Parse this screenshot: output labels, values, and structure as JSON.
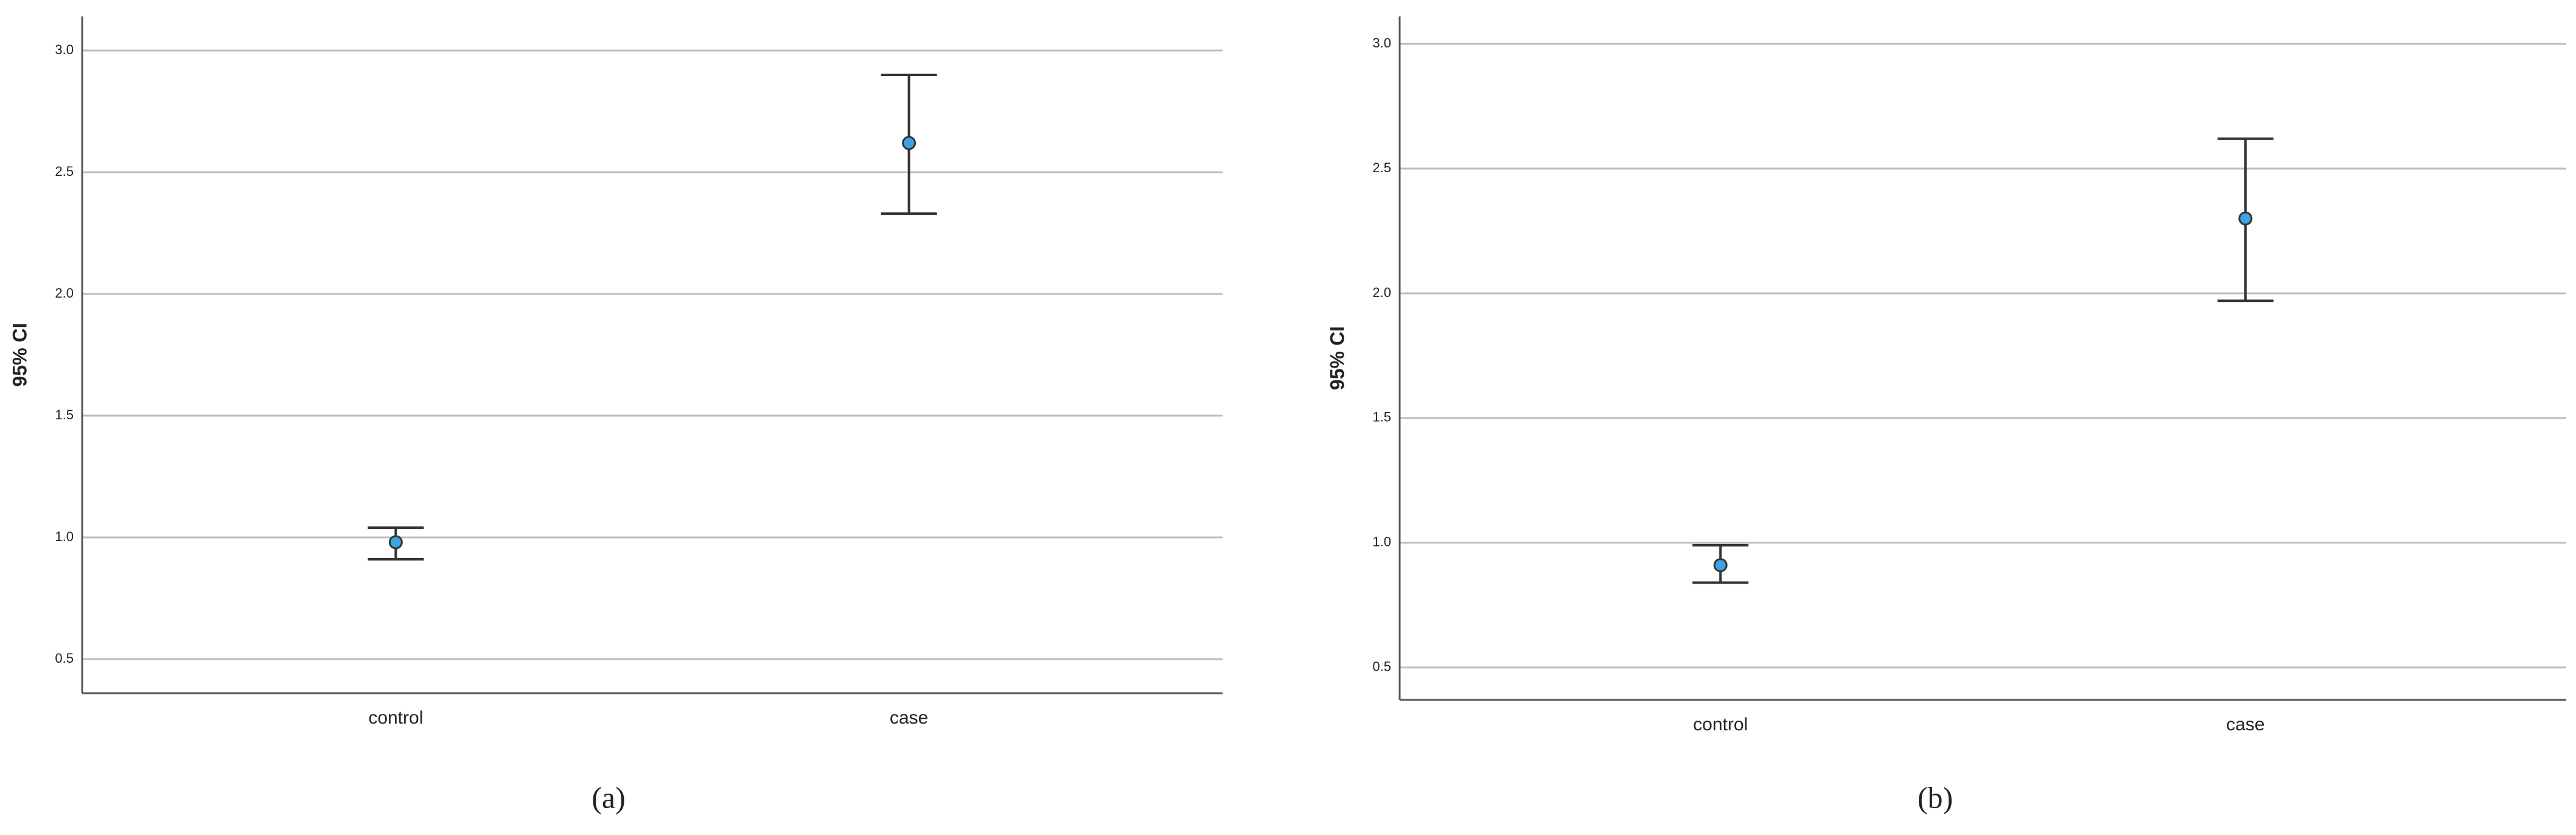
{
  "chart_data": [
    {
      "type": "errorbar",
      "caption": "(a)",
      "y_label": "95% CI",
      "categories": [
        "control",
        "case"
      ],
      "values": [
        0.98,
        2.62
      ],
      "ci_low": [
        0.91,
        2.33
      ],
      "ci_high": [
        1.04,
        2.9
      ],
      "color": "#3ba3e6",
      "ylim": [
        0.36,
        3.14
      ],
      "yticks": [
        0.5,
        {
          "value": 1,
          "label": "1.0"
        },
        1.5,
        {
          "value": 2,
          "label": "2.0"
        },
        2.5,
        {
          "value": 3,
          "label": "3.0"
        }
      ],
      "grid": true
    },
    {
      "type": "errorbar",
      "caption": "(b)",
      "y_label": "95% CI",
      "categories": [
        "control",
        "case"
      ],
      "values": [
        0.91,
        2.3
      ],
      "ci_low": [
        0.84,
        1.97
      ],
      "ci_high": [
        0.99,
        2.62
      ],
      "color": "#3ba3e6",
      "ylim": [
        0.37,
        3.11
      ],
      "yticks": [
        0.5,
        {
          "value": 1,
          "label": "1.0"
        },
        1.5,
        {
          "value": 2,
          "label": "2.0"
        },
        2.5,
        {
          "value": 3,
          "label": "3.0"
        }
      ],
      "grid": true
    }
  ]
}
